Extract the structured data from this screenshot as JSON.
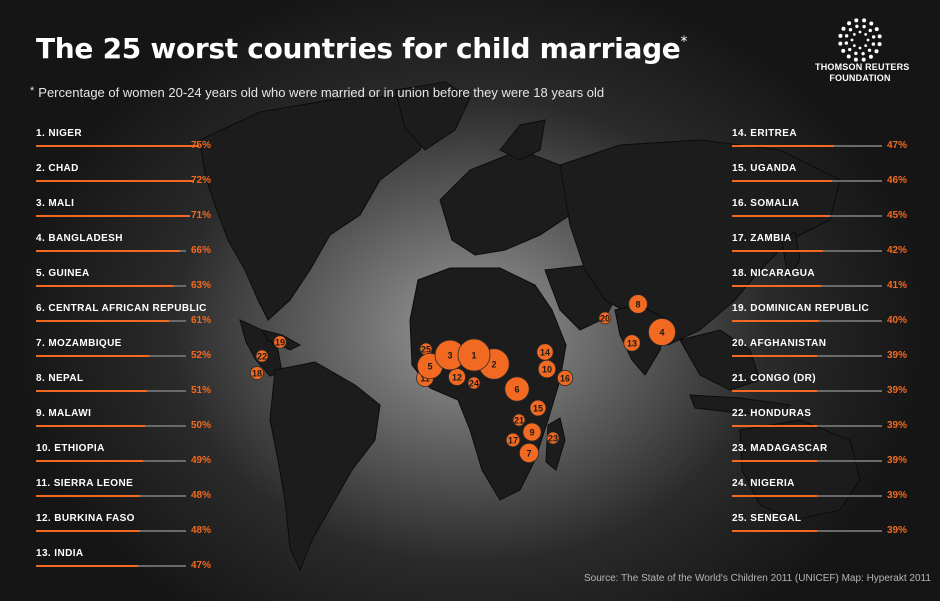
{
  "title": "The 25 worst countries for child marriage",
  "title_mark": "*",
  "subtitle_mark": "*",
  "subtitle": "Percentage of women 20-24 years old who were married or in union before they were 18 years old",
  "logo": {
    "line1": "THOMSON REUTERS",
    "line2": "FOUNDATION"
  },
  "source": "Source: The State of the World's Children 2011 (UNICEF)   Map: Hyperakt 2011",
  "colors": {
    "accent": "#f26a21",
    "track": "#6a6a6a",
    "background": "#1a1a1a",
    "land": "#1c1c1c"
  },
  "chart_data": {
    "type": "bar",
    "unit": "%",
    "categories": [
      "NIGER",
      "CHAD",
      "MALI",
      "BANGLADESH",
      "GUINEA",
      "CENTRAL AFRICAN REPUBLIC",
      "MOZAMBIQUE",
      "NEPAL",
      "MALAWI",
      "ETHIOPIA",
      "SIERRA LEONE",
      "BURKINA FASO",
      "INDIA",
      "ERITREA",
      "UGANDA",
      "SOMALIA",
      "ZAMBIA",
      "NICARAGUA",
      "DOMINICAN REPUBLIC",
      "AFGHANISTAN",
      "CONGO (DR)",
      "HONDURAS",
      "MADAGASCAR",
      "NIGERIA",
      "SENEGAL"
    ],
    "values": [
      75,
      72,
      71,
      66,
      63,
      61,
      52,
      51,
      50,
      49,
      48,
      48,
      47,
      47,
      46,
      45,
      42,
      41,
      40,
      39,
      39,
      39,
      39,
      39,
      39
    ],
    "labels": [
      "1. NIGER",
      "2. CHAD",
      "3. MALI",
      "4. BANGLADESH",
      "5. GUINEA",
      "6. CENTRAL AFRICAN REPUBLIC",
      "7. MOZAMBIQUE",
      "8. NEPAL",
      "9. MALAWI",
      "10. ETHIOPIA",
      "11. SIERRA LEONE",
      "12. BURKINA FASO",
      "13. INDIA",
      "14. ERITREA",
      "15. UGANDA",
      "16. SOMALIA",
      "17. ZAMBIA",
      "18. NICARAGUA",
      "19. DOMINICAN REPUBLIC",
      "20. AFGHANISTAN",
      "21. CONGO (DR)",
      "22. HONDURAS",
      "23. MADAGASCAR",
      "24. NIGERIA",
      "25. SENEGAL"
    ],
    "value_labels": [
      "75%",
      "72%",
      "71%",
      "66%",
      "63%",
      "61%",
      "52%",
      "51%",
      "50%",
      "49%",
      "48%",
      "48%",
      "47%",
      "47%",
      "46%",
      "45%",
      "42%",
      "41%",
      "40%",
      "39%",
      "39%",
      "39%",
      "39%",
      "39%",
      "39%"
    ],
    "xlim": [
      0,
      100
    ],
    "map_markers": [
      "1",
      "2",
      "3",
      "4",
      "5",
      "6",
      "7",
      "8",
      "9",
      "10",
      "11",
      "12",
      "13",
      "14",
      "15",
      "16",
      "17",
      "18",
      "19",
      "20",
      "21",
      "22",
      "23",
      "24",
      "25"
    ]
  }
}
